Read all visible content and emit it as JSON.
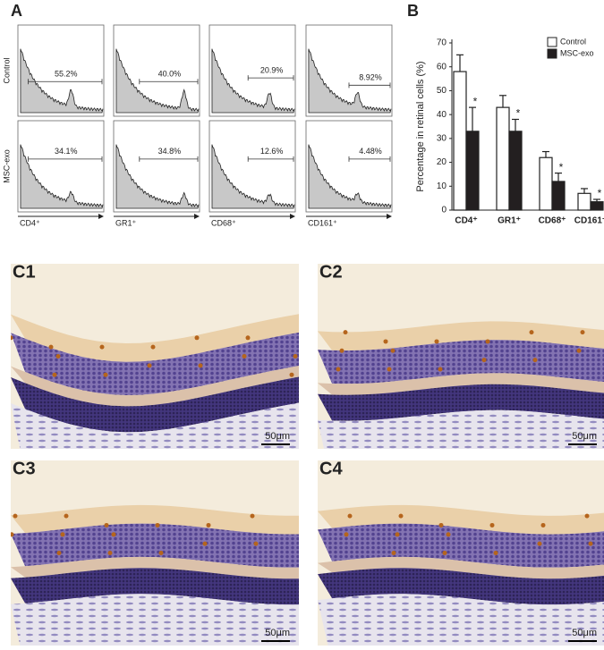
{
  "panel_a": {
    "label": "A",
    "row_labels": [
      "Control",
      "MSC-exo"
    ],
    "markers": [
      "CD4⁺",
      "GR1⁺",
      "CD68⁺",
      "CD161⁺"
    ],
    "percentages": [
      [
        "55.2%",
        "40.0%",
        "20.9%",
        "8.92%"
      ],
      [
        "34.1%",
        "34.8%",
        "12.6%",
        "4.48%"
      ]
    ]
  },
  "chart_data": {
    "type": "bar",
    "panel_label": "B",
    "ylabel": "Percentage in retinal cells (%)",
    "categories": [
      "CD4⁺",
      "GR1⁺",
      "CD68⁺",
      "CD161⁺"
    ],
    "series": [
      {
        "name": "Control",
        "color": "#ffffff",
        "values": [
          58,
          43,
          22,
          7
        ],
        "errors": [
          7,
          5,
          2.5,
          2
        ]
      },
      {
        "name": "MSC-exo",
        "color": "#231f20",
        "values": [
          33,
          33,
          12,
          3.5
        ],
        "errors": [
          10,
          5,
          3.5,
          1
        ],
        "annotations": [
          "*",
          "*",
          "*",
          "*"
        ]
      }
    ],
    "ylim": [
      0,
      70
    ],
    "yticks": [
      0,
      10,
      20,
      30,
      40,
      50,
      60,
      70
    ],
    "legend": "upper right"
  },
  "panel_c": {
    "panels": [
      {
        "label": "C1",
        "scale": "50μm"
      },
      {
        "label": "C2",
        "scale": "50μm"
      },
      {
        "label": "C3",
        "scale": "50μm"
      },
      {
        "label": "C4",
        "scale": "50μm"
      }
    ]
  }
}
